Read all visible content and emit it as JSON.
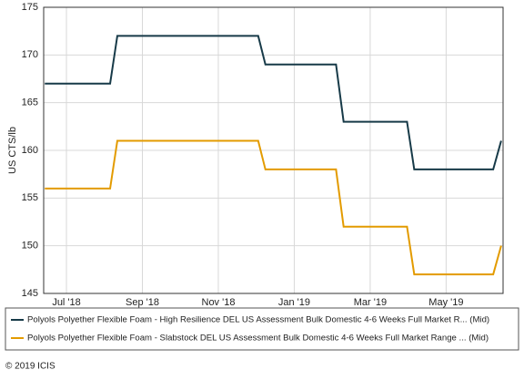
{
  "chart_data": {
    "type": "line",
    "ylabel": "US CTS/lb",
    "x": [
      6.43,
      8.15,
      8.34,
      12.05,
      12.24,
      14.1,
      14.3,
      15.97,
      16.16,
      18.24,
      18.45
    ],
    "xlim": [
      6.4,
      18.5
    ],
    "xticks": [
      {
        "value": 7,
        "label": "Jul '18"
      },
      {
        "value": 9,
        "label": "Sep '18"
      },
      {
        "value": 11,
        "label": "Nov '18"
      },
      {
        "value": 13,
        "label": "Jan '19"
      },
      {
        "value": 15,
        "label": "Mar '19"
      },
      {
        "value": 17,
        "label": "May '19"
      }
    ],
    "ylim": [
      145,
      175
    ],
    "yticks": [
      145,
      150,
      155,
      160,
      165,
      170,
      175
    ],
    "grid": true,
    "series": [
      {
        "name": "Polyols Polyether Flexible Foam - High Resilience DEL US Assessment Bulk Domestic 4-6 Weeks Full Market R... (Mid)",
        "color": "#173a48",
        "values": [
          167,
          167,
          172,
          172,
          169,
          169,
          163,
          163,
          158,
          158,
          161
        ]
      },
      {
        "name": "Polyols Polyether Flexible Foam - Slabstock DEL US Assessment Bulk Domestic 4-6 Weeks Full Market Range ... (Mid)",
        "color": "#e39b00",
        "values": [
          156,
          156,
          161,
          161,
          158,
          158,
          152,
          152,
          147,
          147,
          150
        ]
      }
    ],
    "footer": "© 2019 ICIS"
  }
}
